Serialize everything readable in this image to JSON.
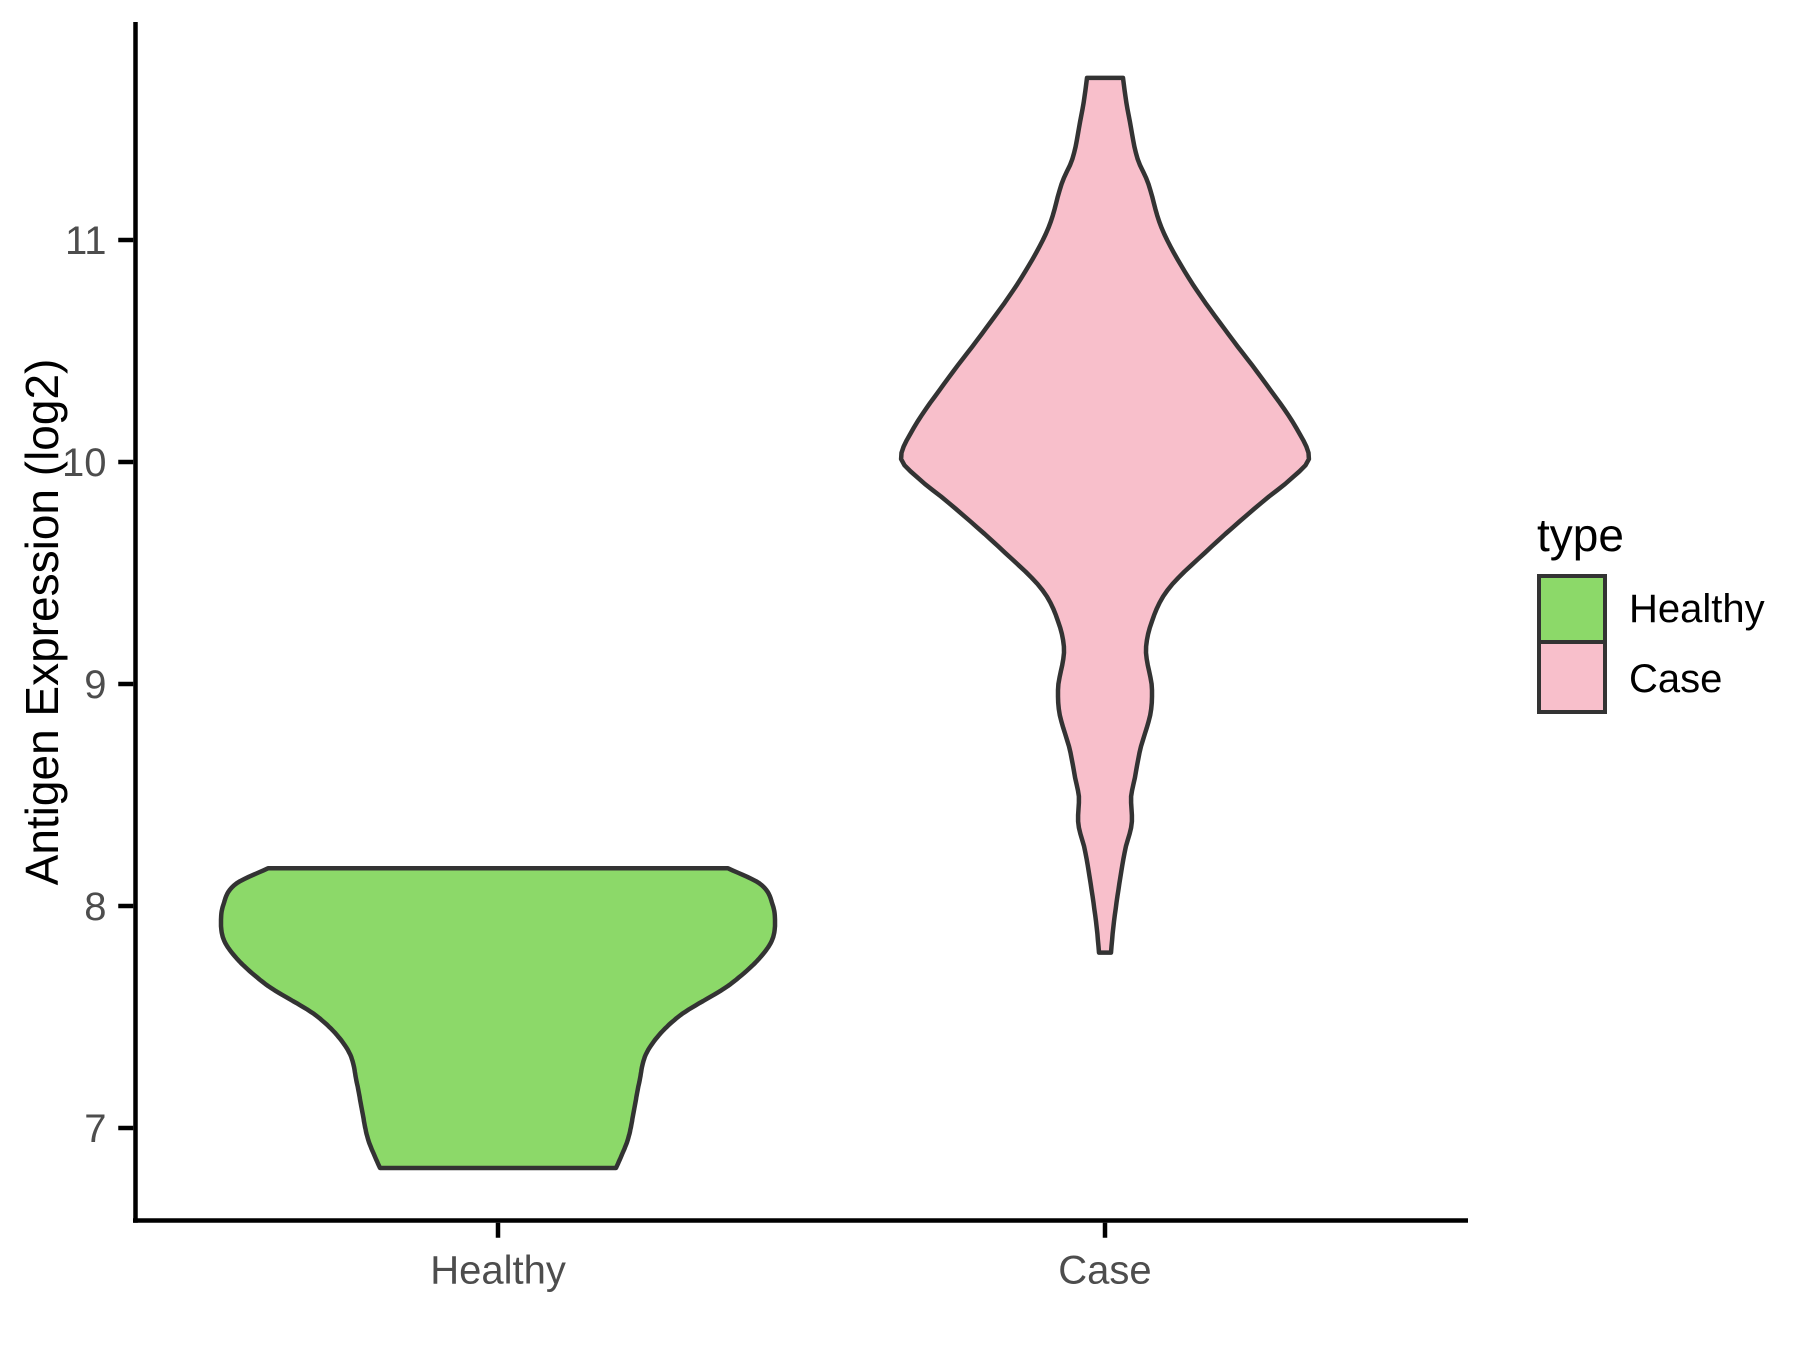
{
  "chart_data": {
    "type": "violin",
    "title": "",
    "xlabel": "",
    "ylabel": "Antigen Expression (log2)",
    "y_ticks": [
      11,
      10,
      9,
      8,
      7
    ],
    "categories": [
      "Healthy",
      "Case"
    ],
    "grid": "off",
    "legend": {
      "title": "type",
      "position": "right",
      "entries": [
        {
          "label": "Healthy",
          "color": "#8CD969"
        },
        {
          "label": "Case",
          "color": "#F8BFCB"
        }
      ]
    },
    "series": [
      {
        "name": "Healthy",
        "fill": "#8CD969",
        "outline": "#333333",
        "y_range": [
          6.82,
          8.17
        ],
        "profile": [
          [
            8.17,
            230
          ],
          [
            8.1,
            262
          ],
          [
            8.0,
            275
          ],
          [
            7.92,
            277
          ],
          [
            7.82,
            271
          ],
          [
            7.65,
            233
          ],
          [
            7.5,
            180
          ],
          [
            7.35,
            150
          ],
          [
            7.2,
            141
          ],
          [
            7.08,
            136
          ],
          [
            6.95,
            130
          ],
          [
            6.86,
            122
          ],
          [
            6.82,
            118
          ]
        ]
      },
      {
        "name": "Case",
        "fill": "#F8BFCB",
        "outline": "#333333",
        "y_range": [
          7.79,
          11.73
        ],
        "profile": [
          [
            11.73,
            18
          ],
          [
            11.63,
            21
          ],
          [
            11.53,
            25
          ],
          [
            11.36,
            33
          ],
          [
            11.27,
            42
          ],
          [
            11.05,
            57
          ],
          [
            10.82,
            85
          ],
          [
            10.59,
            121
          ],
          [
            10.37,
            158
          ],
          [
            10.14,
            193
          ],
          [
            10.02,
            204
          ],
          [
            9.92,
            185
          ],
          [
            9.83,
            160
          ],
          [
            9.6,
            102
          ],
          [
            9.42,
            62
          ],
          [
            9.27,
            46
          ],
          [
            9.15,
            41
          ],
          [
            8.97,
            47
          ],
          [
            8.88,
            46
          ],
          [
            8.7,
            35
          ],
          [
            8.58,
            30
          ],
          [
            8.48,
            26
          ],
          [
            8.39,
            27
          ],
          [
            8.25,
            20
          ],
          [
            8.03,
            12
          ],
          [
            7.89,
            8
          ],
          [
            7.79,
            6
          ]
        ]
      }
    ]
  }
}
